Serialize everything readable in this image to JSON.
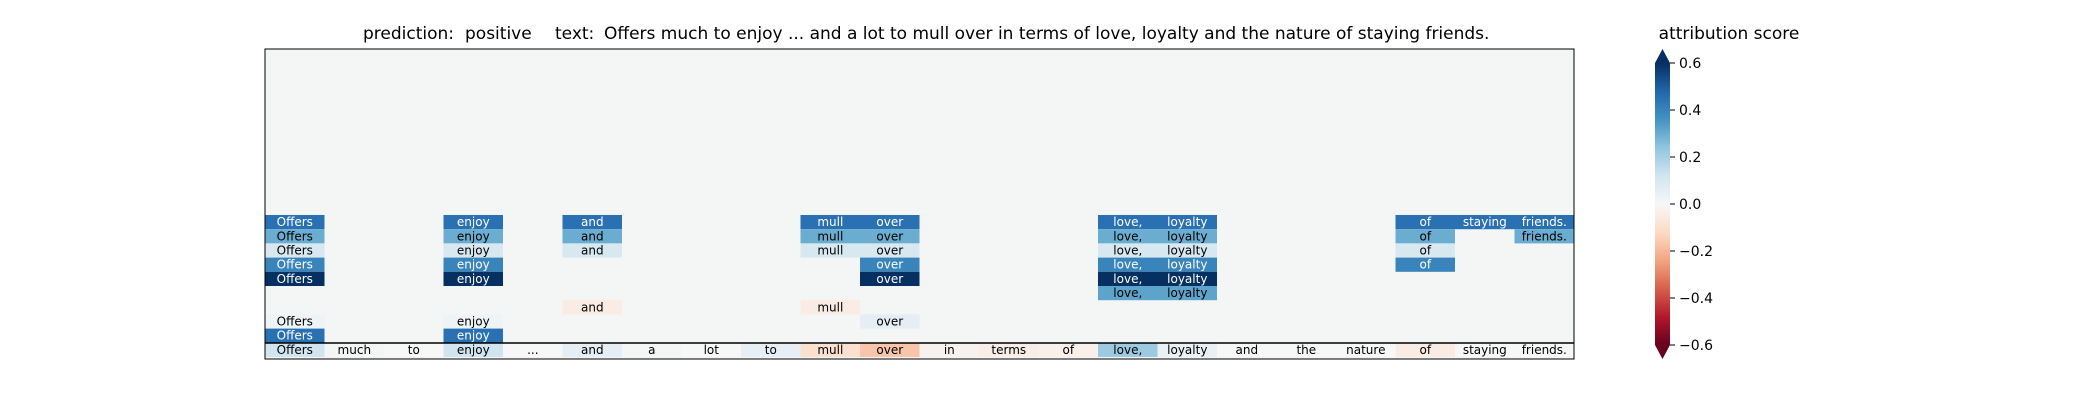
{
  "header": {
    "prediction_label": "prediction:",
    "prediction_value": "positive",
    "text_label": "text:",
    "text_value": "Offers much to enjoy ... and a lot to mull over in terms of love, loyalty and the nature of staying friends."
  },
  "colorbar": {
    "title": "attribution score",
    "ticks": [
      "0.6",
      "0.4",
      "0.2",
      "0.0",
      "−0.2",
      "−0.4",
      "−0.6"
    ]
  },
  "colors": {
    "panel_background": "#f4f5f5",
    "colormap": [
      "#67001f",
      "#b2182b",
      "#d6604d",
      "#f4a582",
      "#fddbc7",
      "#f7f7f7",
      "#d1e5f0",
      "#92c5de",
      "#4393c3",
      "#2166ac",
      "#053061"
    ]
  },
  "chart_data": {
    "type": "heatmap",
    "title": "",
    "xlabel": "",
    "ylabel": "",
    "vlim": [
      -0.6,
      0.6
    ],
    "colorbar_ticks": [
      0.6,
      0.4,
      0.2,
      0.0,
      -0.2,
      -0.4,
      -0.6
    ],
    "tokens": [
      "Offers",
      "much",
      "to",
      "enjoy",
      "...",
      "and",
      "a",
      "lot",
      "to",
      "mull",
      "over",
      "in",
      "terms",
      "of",
      "love,",
      "loyalty",
      "and",
      "the",
      "nature",
      "of",
      "staying",
      "friends."
    ],
    "rows": [
      {
        "cells": [
          [
            0,
            0.45
          ],
          [
            3,
            0.45
          ],
          [
            5,
            0.45
          ],
          [
            9,
            0.45
          ],
          [
            10,
            0.45
          ],
          [
            14,
            0.45
          ],
          [
            15,
            0.45
          ],
          [
            19,
            0.45
          ],
          [
            20,
            0.45
          ],
          [
            21,
            0.45
          ]
        ]
      },
      {
        "cells": [
          [
            0,
            0.3
          ],
          [
            3,
            0.3
          ],
          [
            5,
            0.3
          ],
          [
            9,
            0.3
          ],
          [
            10,
            0.3
          ],
          [
            14,
            0.3
          ],
          [
            15,
            0.3
          ],
          [
            19,
            0.3
          ],
          [
            21,
            0.3
          ]
        ]
      },
      {
        "cells": [
          [
            0,
            0.1
          ],
          [
            3,
            0.1
          ],
          [
            5,
            0.1
          ],
          [
            9,
            0.1
          ],
          [
            10,
            0.1
          ],
          [
            14,
            0.1
          ],
          [
            15,
            0.1
          ],
          [
            19,
            0.1
          ]
        ]
      },
      {
        "cells": [
          [
            0,
            0.4
          ],
          [
            3,
            0.4
          ],
          [
            10,
            0.4
          ],
          [
            14,
            0.4
          ],
          [
            15,
            0.4
          ],
          [
            19,
            0.4
          ]
        ]
      },
      {
        "cells": [
          [
            0,
            0.65
          ],
          [
            3,
            0.65
          ],
          [
            10,
            0.65
          ],
          [
            14,
            0.65
          ],
          [
            15,
            0.65
          ]
        ]
      },
      {
        "cells": [
          [
            14,
            0.32
          ],
          [
            15,
            0.32
          ]
        ]
      },
      {
        "cells": [
          [
            5,
            -0.05
          ],
          [
            9,
            -0.05
          ]
        ]
      },
      {
        "cells": [
          [
            0,
            0.03
          ],
          [
            3,
            0.03
          ],
          [
            10,
            0.06
          ]
        ]
      },
      {
        "cells": [
          [
            0,
            0.45
          ],
          [
            3,
            0.45
          ]
        ]
      },
      {
        "cells": [
          [
            0,
            0.12
          ],
          [
            1,
            0.01
          ],
          [
            2,
            0.0
          ],
          [
            3,
            0.12
          ],
          [
            4,
            0.0
          ],
          [
            5,
            0.06
          ],
          [
            6,
            0.01
          ],
          [
            7,
            0.0
          ],
          [
            8,
            0.05
          ],
          [
            9,
            -0.1
          ],
          [
            10,
            -0.17
          ],
          [
            11,
            -0.02
          ],
          [
            12,
            -0.04
          ],
          [
            13,
            -0.03
          ],
          [
            14,
            0.22
          ],
          [
            15,
            0.04
          ],
          [
            16,
            0.0
          ],
          [
            17,
            0.0
          ],
          [
            18,
            0.0
          ],
          [
            19,
            -0.05
          ],
          [
            20,
            0.0
          ],
          [
            21,
            0.0
          ]
        ]
      }
    ]
  }
}
